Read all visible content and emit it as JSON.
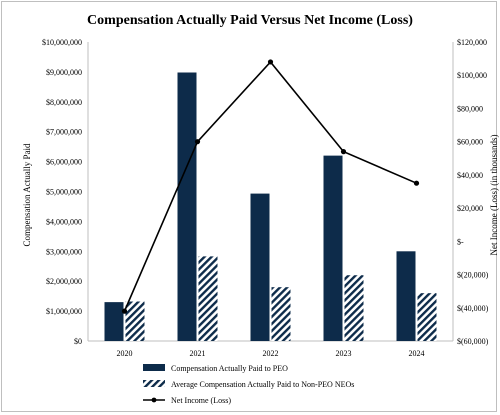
{
  "chart_data": {
    "type": "bar",
    "title": "Compensation Actually Paid Versus Net Income (Loss)",
    "categories": [
      "2020",
      "2021",
      "2022",
      "2023",
      "2024"
    ],
    "ylabel": "Compensation Actually Paid",
    "y2label": "Net Income (Loss) (in thousands)",
    "ylim": [
      0,
      10000000
    ],
    "y2lim": [
      -60000,
      120000
    ],
    "yticks": [
      "$0",
      "$1,000,000",
      "$2,000,000",
      "$3,000,000",
      "$4,000,000",
      "$5,000,000",
      "$6,000,000",
      "$7,000,000",
      "$8,000,000",
      "$9,000,000",
      "$10,000,000"
    ],
    "y2ticks": [
      "$(60,000)",
      "$(40,000)",
      "$(20,000)",
      "$-",
      "$20,000",
      "$40,000",
      "$60,000",
      "$80,000",
      "$100,000",
      "$120,000"
    ],
    "series": [
      {
        "name": "Compensation Actually Paid to PEO",
        "type": "bar",
        "axis": "left",
        "color": "#0d2b4a",
        "values": [
          1300000,
          8980000,
          4930000,
          6200000,
          3000000
        ]
      },
      {
        "name": "Average Compensation Actually Paid to Non-PEO NEOs",
        "type": "bar",
        "axis": "left",
        "pattern": "diagonal-hatch",
        "color": "#0d2b4a",
        "values": [
          1320000,
          2830000,
          1800000,
          2200000,
          1600000
        ]
      },
      {
        "name": "Net Income (Loss)",
        "type": "line",
        "axis": "right",
        "color": "#000000",
        "values": [
          -42000,
          60000,
          108000,
          54000,
          35000
        ]
      }
    ],
    "legend_position": "bottom",
    "grid": false
  }
}
